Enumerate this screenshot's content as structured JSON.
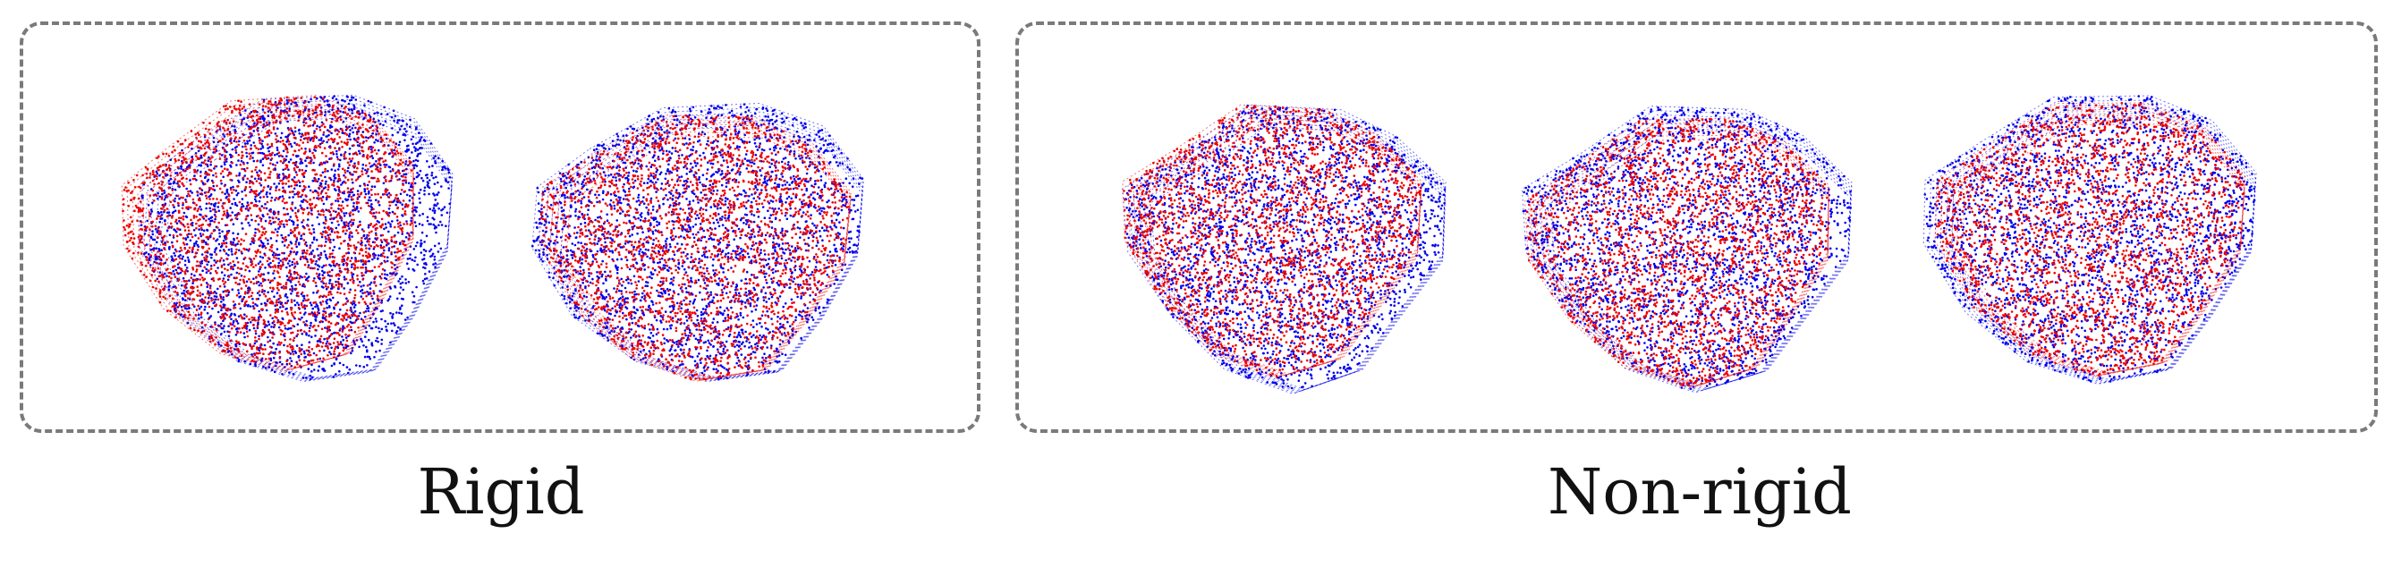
{
  "panels": [
    {
      "caption": "Rigid",
      "registrations": [
        {
          "source_color": "#0000ee",
          "target_color": "#ee0000"
        },
        {
          "source_color": "#0000ee",
          "target_color": "#ee0000"
        }
      ]
    },
    {
      "caption": "Non-rigid",
      "registrations": [
        {
          "source_color": "#0000ee",
          "target_color": "#ee0000"
        },
        {
          "source_color": "#0000ee",
          "target_color": "#ee0000"
        },
        {
          "source_color": "#0000ee",
          "target_color": "#ee0000"
        }
      ]
    }
  ],
  "colors": {
    "source": "#0000ee",
    "target": "#ee0000",
    "frame": "#7a7a7a"
  }
}
